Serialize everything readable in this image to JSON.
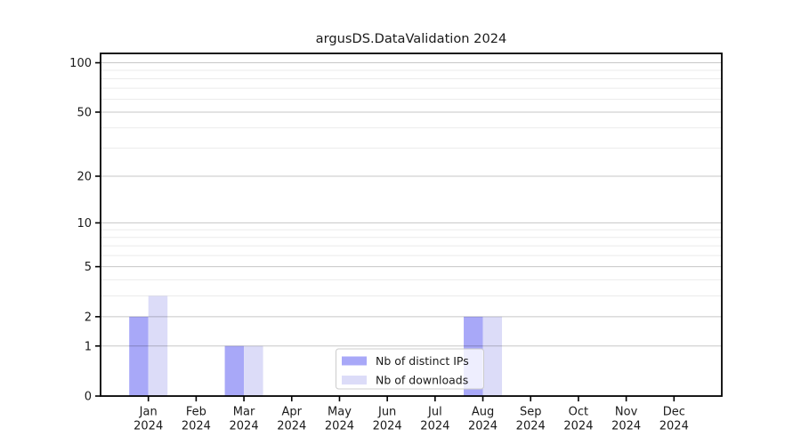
{
  "chart_data": {
    "type": "bar",
    "title": "argusDS.DataValidation 2024",
    "categories": [
      "Jan 2024",
      "Feb 2024",
      "Mar 2024",
      "Apr 2024",
      "May 2024",
      "Jun 2024",
      "Jul 2024",
      "Aug 2024",
      "Sep 2024",
      "Oct 2024",
      "Nov 2024",
      "Dec 2024"
    ],
    "series": [
      {
        "name": "Nb of distinct IPs",
        "color": "#a8a8f8",
        "values": [
          2,
          0,
          1,
          0,
          0,
          0,
          0,
          2,
          0,
          0,
          0,
          0
        ]
      },
      {
        "name": "Nb of downloads",
        "color": "#dcdcf8",
        "values": [
          3,
          0,
          1,
          0,
          0,
          0,
          0,
          2,
          0,
          0,
          0,
          0
        ]
      }
    ],
    "yscale": "log1p",
    "ylim": [
      0,
      114
    ],
    "y_major_ticks": [
      0,
      1,
      2,
      5,
      10,
      20,
      50,
      100
    ],
    "y_minor_ticks": [
      3,
      4,
      6,
      7,
      8,
      9,
      30,
      40,
      60,
      70,
      80,
      90
    ],
    "grid": "both",
    "legend_position": "lower-center-right"
  },
  "colors": {
    "axis": "#000000",
    "tick_text": "#1a1a1a",
    "legend_border": "#cccccc",
    "legend_bg_alpha": "rgba(255,255,255,0.8)"
  }
}
